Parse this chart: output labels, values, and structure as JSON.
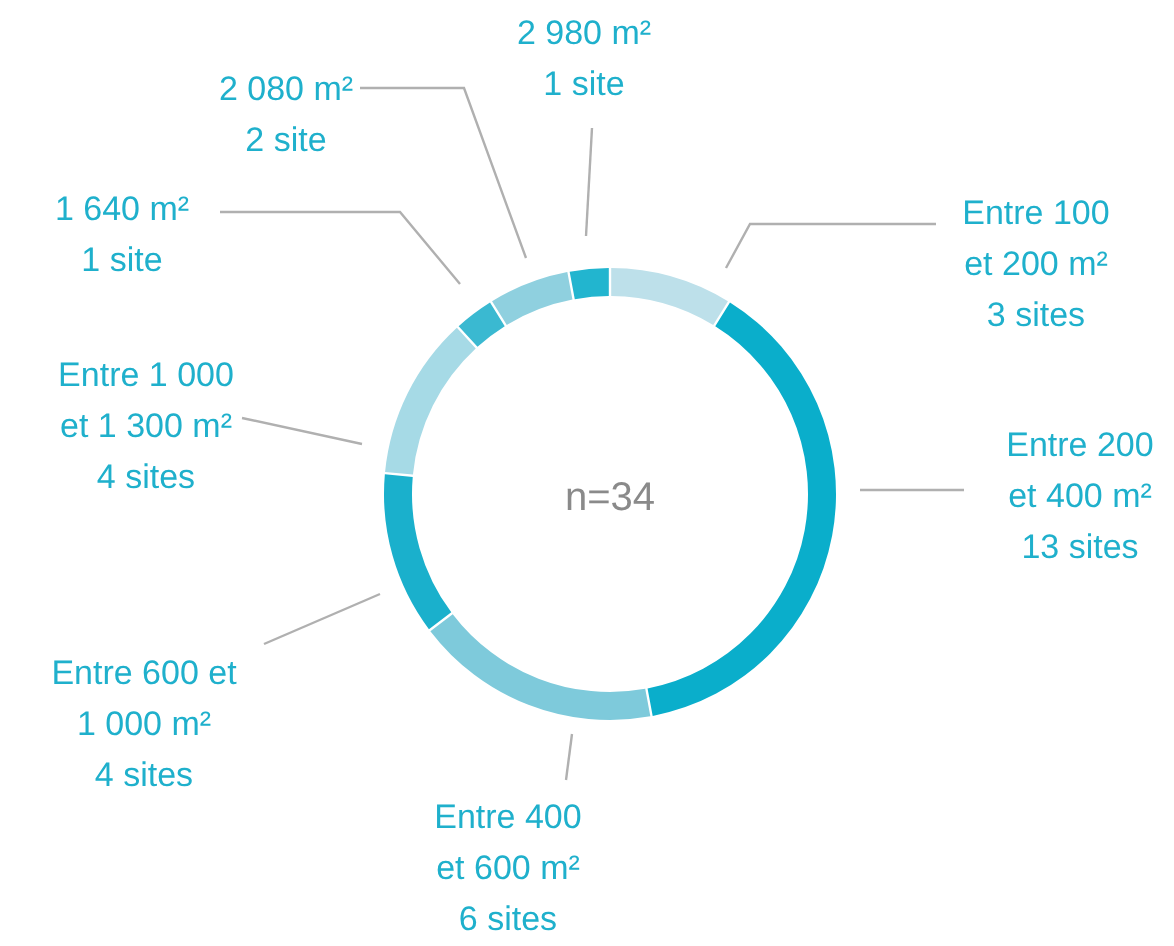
{
  "chart_data": {
    "type": "donut",
    "categories": [
      "Entre 100\net 200 m²",
      "Entre 200\net 400 m²",
      "Entre 400\net 600 m²",
      "Entre 600 et\n1 000 m²",
      "Entre 1 000\net 1 300 m²",
      "1 640 m²",
      "2 080 m²",
      "2 980 m²"
    ],
    "values": [
      3,
      13,
      6,
      4,
      4,
      1,
      2,
      1
    ],
    "value_labels": [
      "3 sites",
      "13 sites",
      "6 sites",
      "4 sites",
      "4 sites",
      "1 site",
      "2 site",
      "1 site"
    ],
    "colors": [
      "#bde0ea",
      "#0aaecb",
      "#7ecadb",
      "#1ab0cc",
      "#a6dae6",
      "#3ab9d1",
      "#8fd0df",
      "#22b5cf"
    ],
    "annotations": [
      "n=34"
    ]
  }
}
